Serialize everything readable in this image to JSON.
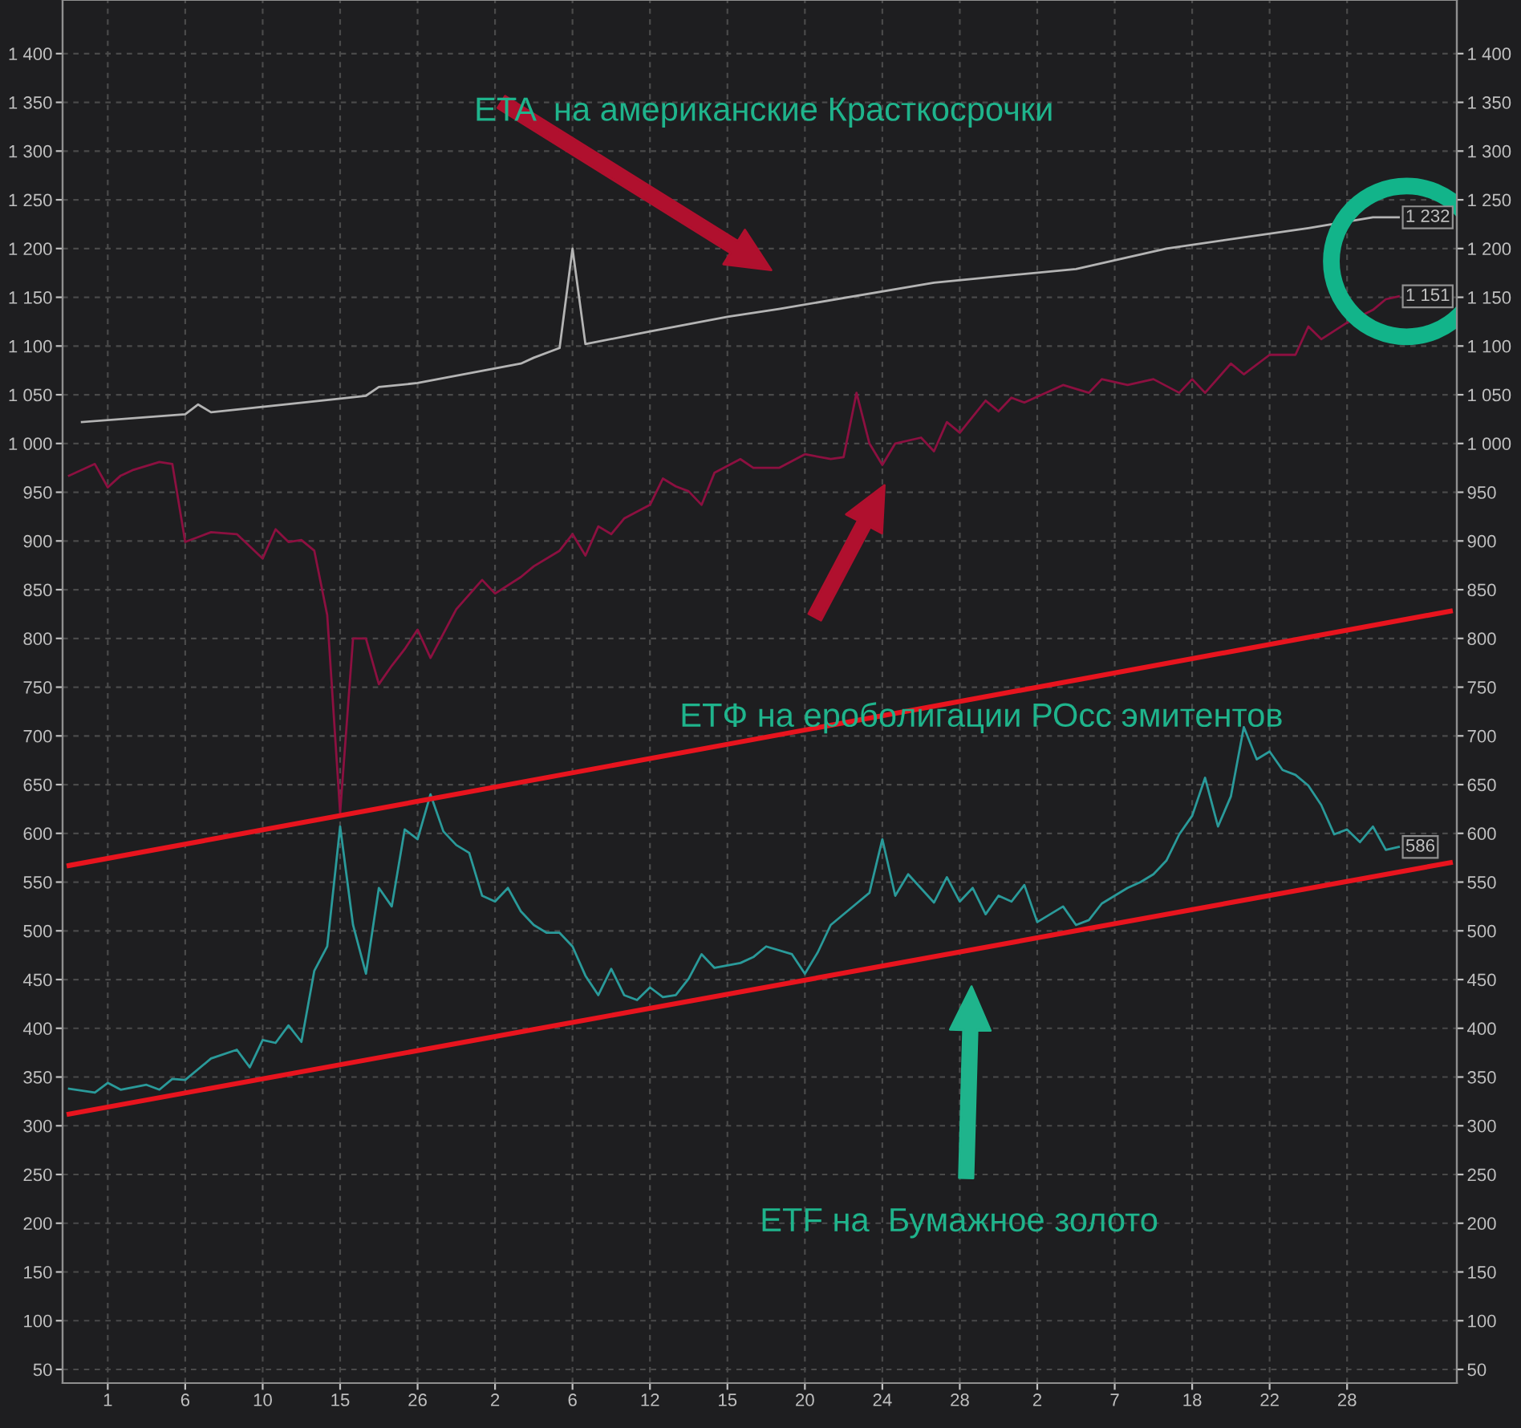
{
  "chart_data": {
    "type": "line",
    "annotations": [
      "ETA  на американские Красткосрочки",
      "ETФ на еробoлигации РОсс эмитентов",
      "ETF на  Бумажное золото",
      "1 232",
      "1 151",
      "586"
    ],
    "categories": [
      null,
      null,
      null,
      "1",
      null,
      null,
      null,
      null,
      null,
      "6",
      null,
      null,
      null,
      null,
      null,
      "10",
      null,
      null,
      null,
      null,
      null,
      "15",
      null,
      null,
      null,
      null,
      null,
      "26",
      null,
      null,
      null,
      null,
      null,
      "2",
      null,
      null,
      null,
      null,
      null,
      "6",
      null,
      null,
      null,
      null,
      null,
      "12",
      null,
      null,
      null,
      null,
      null,
      "15",
      null,
      null,
      null,
      null,
      null,
      "20",
      null,
      null,
      null,
      null,
      null,
      "24",
      null,
      null,
      null,
      null,
      null,
      "28",
      null,
      null,
      null,
      null,
      null,
      "2",
      null,
      null,
      null,
      null,
      null,
      "7",
      null,
      null,
      null,
      null,
      null,
      "18",
      null,
      null,
      null,
      null,
      null,
      "22",
      null,
      null,
      null,
      null,
      null,
      "28",
      null,
      null,
      null,
      null,
      null,
      null,
      null,
      null
    ],
    "series": [
      {
        "color": "#b4b4b4",
        "values": [
          null,
          1022,
          null,
          null,
          null,
          null,
          null,
          null,
          null,
          1030,
          1040,
          1032,
          null,
          null,
          null,
          null,
          null,
          null,
          null,
          null,
          null,
          1046,
          null,
          1049,
          1058,
          null,
          null,
          1062,
          null,
          null,
          null,
          null,
          null,
          null,
          null,
          1082,
          1088,
          null,
          1098,
          1200,
          1102,
          null,
          null,
          null,
          null,
          1115,
          null,
          null,
          null,
          null,
          null,
          1130,
          null,
          null,
          null,
          1138,
          null,
          null,
          null,
          null,
          null,
          null,
          null,
          null,
          null,
          null,
          null,
          1165,
          null,
          null,
          null,
          null,
          null,
          null,
          null,
          null,
          null,
          null,
          1179,
          null,
          null,
          null,
          null,
          null,
          null,
          1200,
          null,
          null,
          null,
          null,
          null,
          null,
          null,
          null,
          null,
          null,
          1221,
          null,
          null,
          null,
          null,
          1232,
          null,
          1232,
          null,
          null,
          null,
          null
        ]
      },
      {
        "color": "#8c1040",
        "values": [
          967,
          null,
          979,
          955,
          967,
          973,
          null,
          981,
          979,
          899,
          904,
          909,
          null,
          907,
          null,
          882,
          912,
          899,
          901,
          890,
          824,
          621,
          800,
          800,
          753,
          772,
          789,
          809,
          780,
          null,
          830,
          null,
          860,
          846,
          null,
          863,
          874,
          null,
          890,
          907,
          885,
          915,
          907,
          923,
          null,
          937,
          964,
          956,
          951,
          937,
          970,
          null,
          984,
          975,
          null,
          975,
          null,
          989,
          null,
          984,
          986,
          1052,
          1000,
          978,
          1000,
          null,
          1006,
          992,
          1022,
          1011,
          null,
          1044,
          1033,
          1047,
          1042,
          null,
          null,
          1060,
          null,
          1052,
          1066,
          null,
          1060,
          null,
          1066,
          null,
          1052,
          1066,
          1052,
          null,
          1082,
          1071,
          null,
          1091,
          null,
          1091,
          1120,
          1107,
          null,
          1124,
          null,
          1137,
          1148,
          1151,
          null,
          null,
          null,
          null
        ]
      },
      {
        "color": "#2a9a9a",
        "values": [
          338,
          null,
          334,
          344,
          337,
          null,
          342,
          337,
          348,
          347,
          null,
          369,
          null,
          378,
          360,
          388,
          385,
          403,
          386,
          459,
          484,
          607,
          506,
          456,
          544,
          525,
          604,
          594,
          640,
          602,
          588,
          580,
          536,
          530,
          544,
          520,
          506,
          498,
          498,
          484,
          454,
          434,
          461,
          434,
          429,
          442,
          432,
          434,
          451,
          476,
          462,
          null,
          467,
          473,
          484,
          null,
          476,
          456,
          478,
          506,
          null,
          528,
          539,
          594,
          536,
          558,
          null,
          529,
          555,
          530,
          544,
          517,
          536,
          530,
          547,
          509,
          null,
          525,
          506,
          511,
          528,
          null,
          544,
          550,
          558,
          572,
          599,
          618,
          657,
          607,
          638,
          709,
          676,
          684,
          665,
          660,
          649,
          629,
          599,
          604,
          591,
          607,
          583,
          586,
          null,
          null,
          null,
          null
        ]
      },
      {
        "color": "#e8141e",
        "values": [
          567,
          null,
          null,
          null,
          null,
          null,
          null,
          null,
          null,
          null,
          null,
          null,
          null,
          null,
          null,
          null,
          null,
          null,
          null,
          null,
          null,
          null,
          null,
          null,
          null,
          null,
          null,
          null,
          null,
          null,
          null,
          null,
          null,
          null,
          null,
          null,
          null,
          null,
          null,
          null,
          null,
          null,
          null,
          null,
          null,
          null,
          null,
          null,
          null,
          null,
          null,
          null,
          null,
          null,
          null,
          null,
          null,
          null,
          null,
          null,
          null,
          null,
          null,
          null,
          null,
          null,
          null,
          null,
          null,
          null,
          null,
          null,
          null,
          null,
          null,
          null,
          null,
          null,
          null,
          null,
          null,
          null,
          null,
          null,
          null,
          null,
          null,
          null,
          null,
          null,
          null,
          null,
          null,
          null,
          null,
          null,
          null,
          null,
          null,
          null,
          null,
          null,
          null,
          null,
          null,
          null,
          null,
          828
        ]
      },
      {
        "color": "#e8141e",
        "values": [
          312,
          null,
          null,
          null,
          null,
          null,
          null,
          null,
          null,
          null,
          null,
          null,
          null,
          null,
          null,
          null,
          null,
          null,
          null,
          null,
          null,
          null,
          null,
          null,
          null,
          null,
          null,
          null,
          null,
          null,
          null,
          null,
          null,
          null,
          null,
          null,
          null,
          null,
          null,
          null,
          null,
          null,
          null,
          null,
          null,
          null,
          null,
          null,
          null,
          null,
          null,
          null,
          null,
          null,
          null,
          null,
          null,
          null,
          null,
          null,
          null,
          null,
          null,
          null,
          null,
          null,
          null,
          null,
          null,
          null,
          null,
          null,
          null,
          null,
          null,
          null,
          null,
          null,
          null,
          null,
          null,
          null,
          null,
          null,
          null,
          null,
          null,
          null,
          null,
          null,
          null,
          null,
          null,
          null,
          null,
          null,
          null,
          null,
          null,
          null,
          null,
          null,
          null,
          null,
          null,
          null,
          null,
          570
        ]
      }
    ],
    "ylim": [
      36,
      1455
    ],
    "yticks": [
      50,
      100,
      150,
      200,
      250,
      300,
      350,
      400,
      450,
      500,
      550,
      600,
      650,
      700,
      750,
      800,
      850,
      900,
      950,
      {
        "value": 1000,
        "label": "1 000"
      },
      {
        "value": 1050,
        "label": "1 050"
      },
      {
        "value": 1100,
        "label": "1 100"
      },
      {
        "value": 1150,
        "label": "1 150"
      },
      {
        "value": 1200,
        "label": "1 200"
      },
      {
        "value": 1250,
        "label": "1 250"
      },
      {
        "value": 1300,
        "label": "1 300"
      },
      {
        "value": 1350,
        "label": "1 350"
      },
      {
        "value": 1400,
        "label": "1 400"
      }
    ],
    "y2lim": [
      36,
      1455
    ],
    "y2ticks": [
      50,
      100,
      150,
      200,
      250,
      300,
      350,
      400,
      450,
      500,
      550,
      600,
      650,
      700,
      750,
      800,
      850,
      900,
      950,
      {
        "value": 1000,
        "label": "1 000"
      },
      {
        "value": 1050,
        "label": "1 050"
      },
      {
        "value": 1100,
        "label": "1 100"
      },
      {
        "value": 1150,
        "label": "1 150"
      },
      {
        "value": 1200,
        "label": "1 200"
      },
      {
        "value": 1250,
        "label": "1 250"
      },
      {
        "value": 1300,
        "label": "1 300"
      },
      {
        "value": 1350,
        "label": "1 350"
      },
      {
        "value": 1400,
        "label": "1 400"
      }
    ],
    "grid": true
  }
}
